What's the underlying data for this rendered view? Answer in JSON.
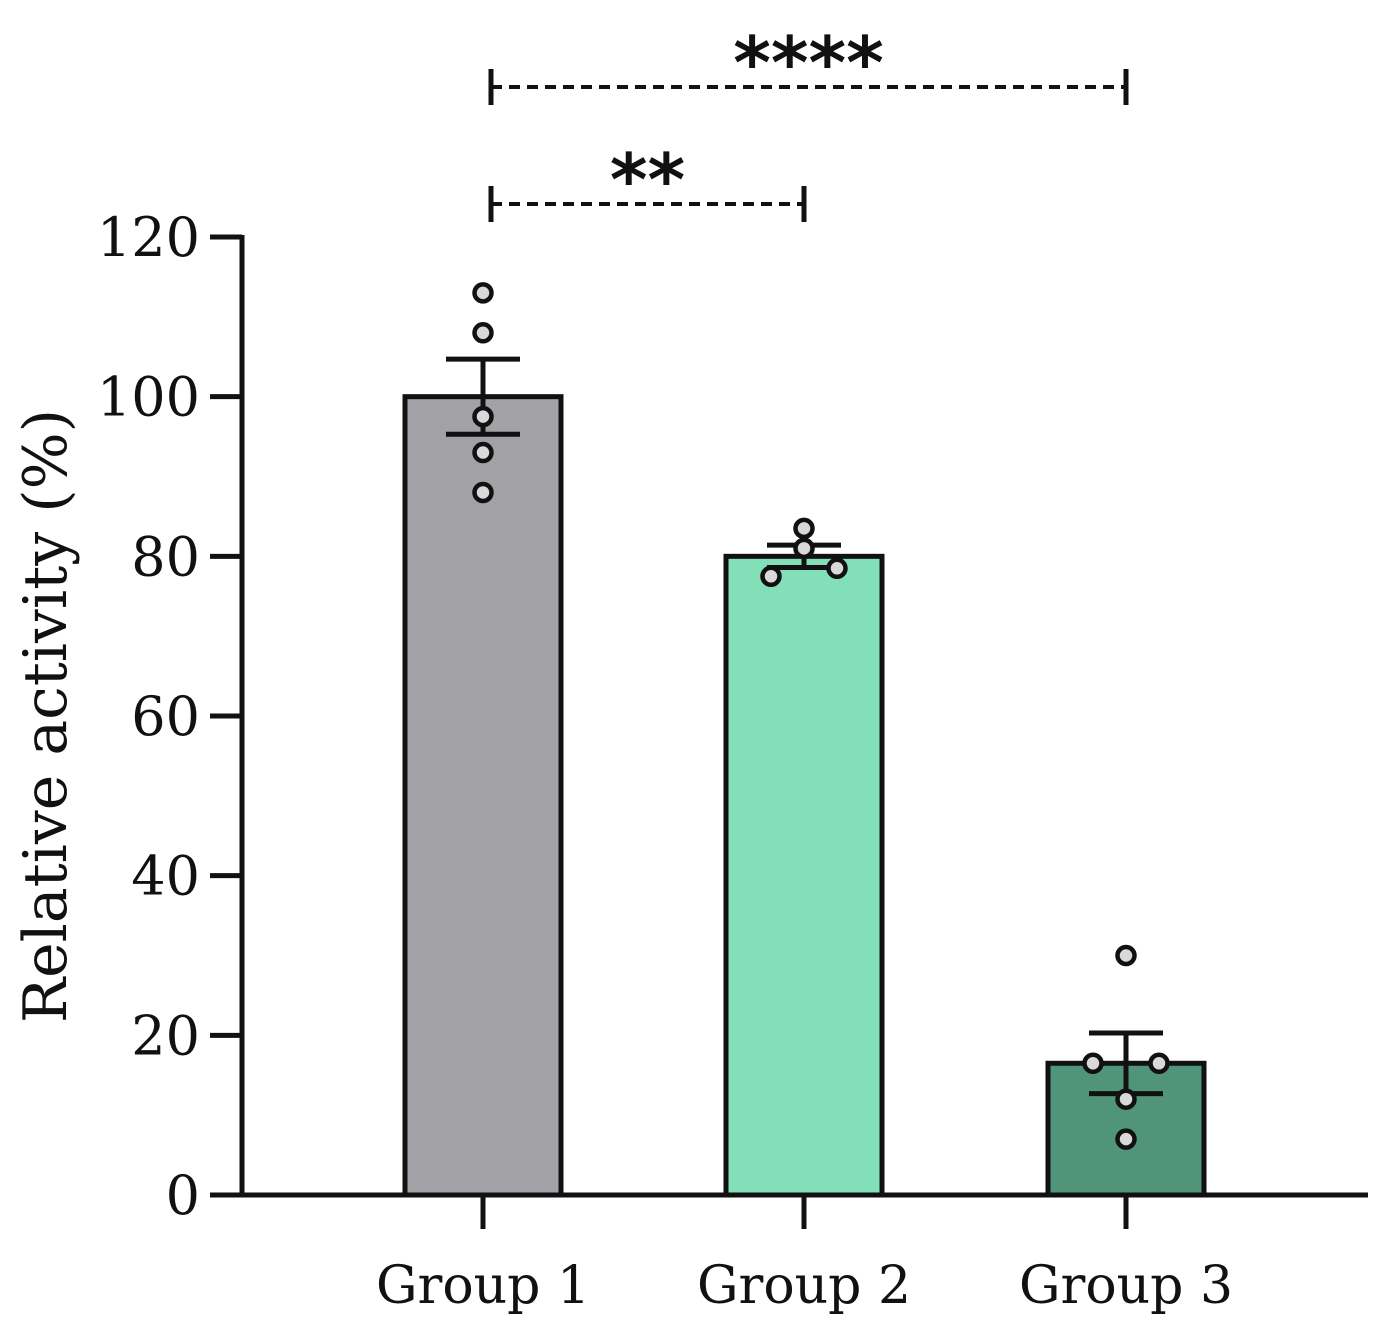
{
  "chart_data": {
    "type": "bar",
    "title": "",
    "xlabel": "",
    "ylabel": "Relative activity (%)",
    "ylim": [
      0,
      120
    ],
    "yticks": [
      0,
      20,
      40,
      60,
      80,
      100,
      120
    ],
    "categories": [
      "Group 1",
      "Group 2",
      "Group 3"
    ],
    "values": [
      100,
      80,
      16.5
    ],
    "errors": [
      4.7,
      1.4,
      3.8
    ],
    "colors": [
      "#a2a1a6",
      "#82dfb8",
      "#50957a"
    ],
    "points": [
      [
        113,
        108,
        97.5,
        93,
        88
      ],
      [
        83.5,
        81,
        78.5,
        77.5
      ],
      [
        30,
        16.5,
        16.5,
        12,
        7
      ]
    ],
    "significance": [
      {
        "from": 0,
        "to": 1,
        "label": "**"
      },
      {
        "from": 0,
        "to": 2,
        "label": "****"
      }
    ],
    "grid": false,
    "legend": "none"
  }
}
